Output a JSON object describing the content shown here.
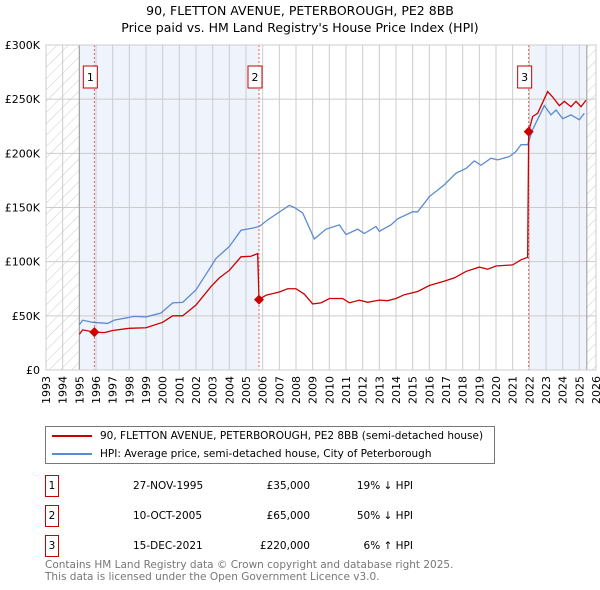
{
  "header": {
    "title": "90, FLETTON AVENUE, PETERBOROUGH, PE2 8BB",
    "subtitle": "Price paid vs. HM Land Registry's House Price Index (HPI)"
  },
  "chart_data": {
    "type": "line",
    "title": "90, FLETTON AVENUE, PETERBOROUGH, PE2 8BB",
    "subtitle": "Price paid vs. HM Land Registry's House Price Index (HPI)",
    "xlim": [
      1993,
      2026
    ],
    "ylim": [
      0,
      300000
    ],
    "x_ticks": [
      "1993",
      "1994",
      "1995",
      "1996",
      "1997",
      "1998",
      "1999",
      "2000",
      "2001",
      "2002",
      "2003",
      "2004",
      "2005",
      "2006",
      "2007",
      "2008",
      "2009",
      "2010",
      "2011",
      "2012",
      "2013",
      "2014",
      "2015",
      "2016",
      "2017",
      "2018",
      "2019",
      "2020",
      "2021",
      "2022",
      "2023",
      "2024",
      "2025",
      "2026"
    ],
    "y_ticks": [
      {
        "v": 0,
        "label": "£0"
      },
      {
        "v": 50000,
        "label": "£50K"
      },
      {
        "v": 100000,
        "label": "£100K"
      },
      {
        "v": 150000,
        "label": "£150K"
      },
      {
        "v": 200000,
        "label": "£200K"
      },
      {
        "v": 250000,
        "label": "£250K"
      },
      {
        "v": 300000,
        "label": "£300K"
      }
    ],
    "grid": true,
    "colors": {
      "property": "#cc0000",
      "hpi": "#5b8bd0",
      "shade": "#eef3fc"
    },
    "series": [
      {
        "name": "90, FLETTON AVENUE, PETERBOROUGH, PE2 8BB (semi-detached house)",
        "color": "#cc0000",
        "x": [
          1995,
          1995.2,
          1995.9,
          1996.5,
          1997,
          1998,
          1999,
          2000,
          2000.6,
          2001.2,
          2002,
          2002.9,
          2003.4,
          2004,
          2004.7,
          2005.3,
          2005.7,
          2005.78,
          2006.2,
          2007,
          2007.5,
          2008,
          2008.5,
          2009,
          2009.5,
          2010,
          2010.8,
          2011.2,
          2011.8,
          2012.3,
          2013,
          2013.5,
          2014,
          2014.5,
          2015.3,
          2016,
          2016.9,
          2017.5,
          2018.2,
          2019,
          2019.5,
          2020,
          2021,
          2021.5,
          2021.9,
          2021.96,
          2022.2,
          2022.5,
          2022.8,
          2023.1,
          2023.4,
          2023.8,
          2024.1,
          2024.5,
          2024.8,
          2025.1,
          2025.4
        ],
        "y": [
          33000,
          37000,
          35000,
          34500,
          36500,
          38500,
          39000,
          44000,
          50000,
          50000,
          60000,
          77000,
          85000,
          92000,
          104500,
          105000,
          107500,
          65000,
          69000,
          72000,
          75000,
          75000,
          70000,
          61000,
          62000,
          66000,
          66000,
          62000,
          64500,
          62500,
          64500,
          64000,
          66000,
          69500,
          72500,
          78000,
          82000,
          85000,
          91000,
          95000,
          93000,
          96000,
          97000,
          101700,
          104000,
          220000,
          234000,
          237000,
          247000,
          257000,
          252000,
          244000,
          248000,
          243000,
          248000,
          243000,
          249000
        ]
      },
      {
        "name": "HPI: Average price, semi-detached house, City of Peterborough",
        "color": "#5b8bd0",
        "x": [
          1995,
          1995.2,
          1995.8,
          1996.7,
          1997.1,
          1998.3,
          1999,
          1999.9,
          2000.6,
          2001.2,
          2002,
          2002.9,
          2003.2,
          2004,
          2004.7,
          2005.4,
          2005.8,
          2006.3,
          2007.6,
          2007.9,
          2008.4,
          2009.1,
          2009.8,
          2010.6,
          2011,
          2011.7,
          2012.1,
          2012.8,
          2013,
          2013.7,
          2014.1,
          2015,
          2015.3,
          2016,
          2016.9,
          2017.6,
          2018.2,
          2018.7,
          2019.1,
          2019.7,
          2020.1,
          2020.8,
          2021.2,
          2021.5,
          2021.9,
          2022.2,
          2022.9,
          2023.3,
          2023.6,
          2024,
          2024.5,
          2025,
          2025.3
        ],
        "y": [
          41800,
          46000,
          44000,
          43000,
          46000,
          49500,
          49000,
          52600,
          62000,
          62400,
          74000,
          95600,
          103000,
          114000,
          129000,
          131000,
          132500,
          138600,
          152000,
          150000,
          145000,
          121000,
          130000,
          134000,
          125000,
          130000,
          126000,
          132500,
          128000,
          134000,
          139600,
          146000,
          146000,
          160000,
          171000,
          181700,
          186000,
          193000,
          189000,
          195500,
          194000,
          197000,
          201700,
          208000,
          208000,
          222000,
          244000,
          235500,
          240000,
          232000,
          235500,
          231000,
          237000
        ]
      }
    ],
    "sales": [
      {
        "n": "1",
        "x": 1995.9,
        "y": 35000,
        "date": "27-NOV-1995",
        "price": "£35,000",
        "hpi": "19% ↓ HPI"
      },
      {
        "n": "2",
        "x": 2005.78,
        "y": 65000,
        "date": "10-OCT-2005",
        "price": "£65,000",
        "hpi": "50% ↓ HPI"
      },
      {
        "n": "3",
        "x": 2021.96,
        "y": 220000,
        "date": "15-DEC-2021",
        "price": "£220,000",
        "hpi": "6% ↑ HPI"
      }
    ],
    "data_range": [
      1995,
      2025.45
    ]
  },
  "legend": {
    "property": "90, FLETTON AVENUE, PETERBOROUGH, PE2 8BB (semi-detached house)",
    "hpi": "HPI: Average price, semi-detached house, City of Peterborough"
  },
  "footer": {
    "line1": "Contains HM Land Registry data © Crown copyright and database right 2025.",
    "line2": "This data is licensed under the Open Government Licence v3.0."
  }
}
